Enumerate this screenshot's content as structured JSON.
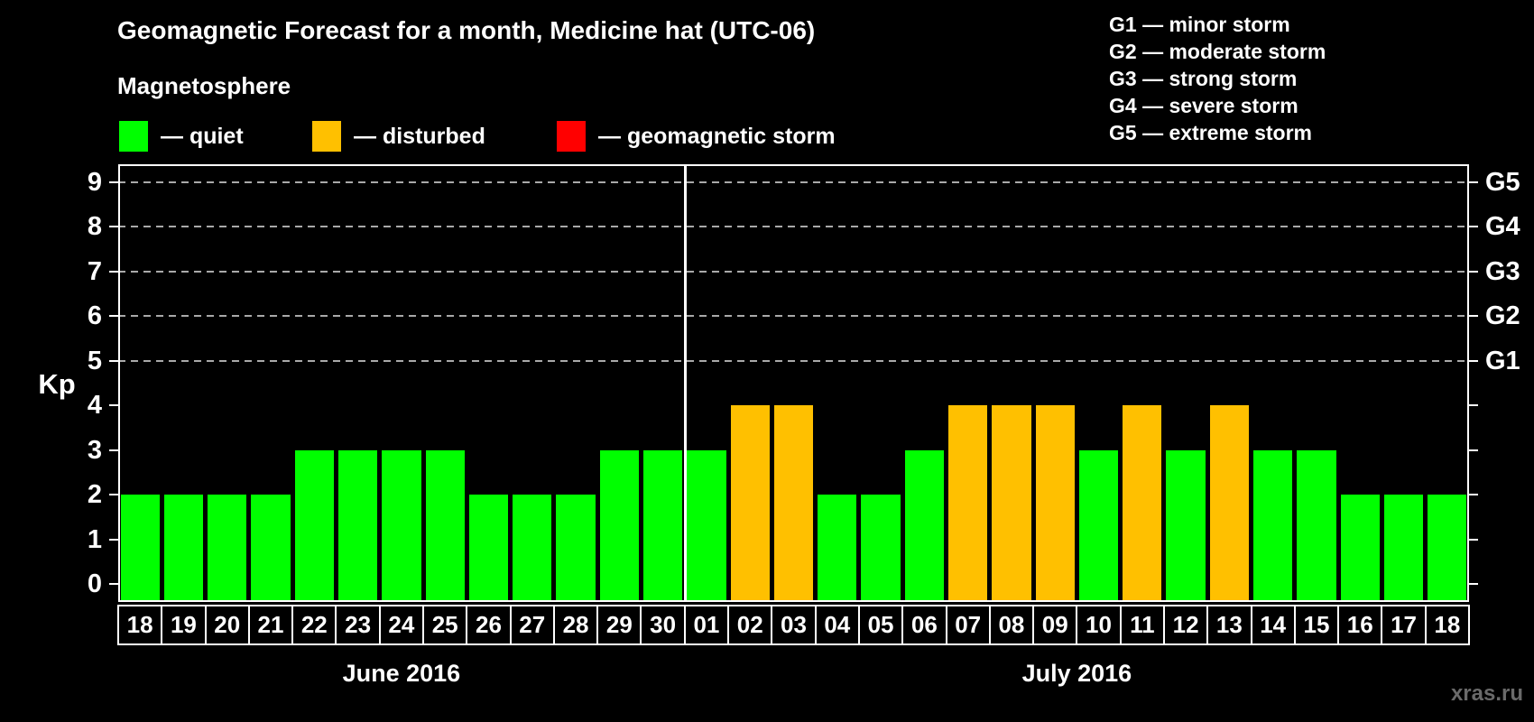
{
  "title": "Geomagnetic Forecast for a month, Medicine hat (UTC-06)",
  "subtitle": "Magnetosphere",
  "legend": {
    "items": [
      {
        "key": "quiet",
        "label": "— quiet",
        "color": "#00ff00"
      },
      {
        "key": "disturbed",
        "label": "— disturbed",
        "color": "#ffc000"
      },
      {
        "key": "storm",
        "label": "— geomagnetic storm",
        "color": "#ff0000"
      }
    ]
  },
  "g_scale_legend": [
    "G1 — minor storm",
    "G2 — moderate storm",
    "G3 — strong storm",
    "G4 — severe storm",
    "G5 — extreme storm"
  ],
  "watermark": "xras.ru",
  "chart_data": {
    "type": "bar",
    "ylabel": "Kp",
    "ylim": [
      -0.4,
      9.4
    ],
    "y_ticks": [
      0,
      1,
      2,
      3,
      4,
      5,
      6,
      7,
      8,
      9
    ],
    "gridlines_kp": [
      5,
      6,
      7,
      8,
      9
    ],
    "grid": "dashed horizontal at storm levels only",
    "legend_position": "top",
    "right_axis_labels": [
      {
        "label": "G1",
        "kp": 5
      },
      {
        "label": "G2",
        "kp": 6
      },
      {
        "label": "G3",
        "kp": 7
      },
      {
        "label": "G4",
        "kp": 8
      },
      {
        "label": "G5",
        "kp": 9
      }
    ],
    "colors": {
      "quiet": "#00ff00",
      "disturbed": "#ffc000",
      "storm": "#ff0000"
    },
    "months": [
      {
        "label": "June 2016",
        "days": [
          {
            "day": "18",
            "kp": 2,
            "status": "quiet"
          },
          {
            "day": "19",
            "kp": 2,
            "status": "quiet"
          },
          {
            "day": "20",
            "kp": 2,
            "status": "quiet"
          },
          {
            "day": "21",
            "kp": 2,
            "status": "quiet"
          },
          {
            "day": "22",
            "kp": 3,
            "status": "quiet"
          },
          {
            "day": "23",
            "kp": 3,
            "status": "quiet"
          },
          {
            "day": "24",
            "kp": 3,
            "status": "quiet"
          },
          {
            "day": "25",
            "kp": 3,
            "status": "quiet"
          },
          {
            "day": "26",
            "kp": 2,
            "status": "quiet"
          },
          {
            "day": "27",
            "kp": 2,
            "status": "quiet"
          },
          {
            "day": "28",
            "kp": 2,
            "status": "quiet"
          },
          {
            "day": "29",
            "kp": 3,
            "status": "quiet"
          },
          {
            "day": "30",
            "kp": 3,
            "status": "quiet"
          }
        ]
      },
      {
        "label": "July 2016",
        "days": [
          {
            "day": "01",
            "kp": 3,
            "status": "quiet"
          },
          {
            "day": "02",
            "kp": 4,
            "status": "disturbed"
          },
          {
            "day": "03",
            "kp": 4,
            "status": "disturbed"
          },
          {
            "day": "04",
            "kp": 2,
            "status": "quiet"
          },
          {
            "day": "05",
            "kp": 2,
            "status": "quiet"
          },
          {
            "day": "06",
            "kp": 3,
            "status": "quiet"
          },
          {
            "day": "07",
            "kp": 4,
            "status": "disturbed"
          },
          {
            "day": "08",
            "kp": 4,
            "status": "disturbed"
          },
          {
            "day": "09",
            "kp": 4,
            "status": "disturbed"
          },
          {
            "day": "10",
            "kp": 3,
            "status": "quiet"
          },
          {
            "day": "11",
            "kp": 4,
            "status": "disturbed"
          },
          {
            "day": "12",
            "kp": 3,
            "status": "quiet"
          },
          {
            "day": "13",
            "kp": 4,
            "status": "disturbed"
          },
          {
            "day": "14",
            "kp": 3,
            "status": "quiet"
          },
          {
            "day": "15",
            "kp": 3,
            "status": "quiet"
          },
          {
            "day": "16",
            "kp": 2,
            "status": "quiet"
          },
          {
            "day": "17",
            "kp": 2,
            "status": "quiet"
          },
          {
            "day": "18",
            "kp": 2,
            "status": "quiet"
          }
        ]
      }
    ]
  }
}
